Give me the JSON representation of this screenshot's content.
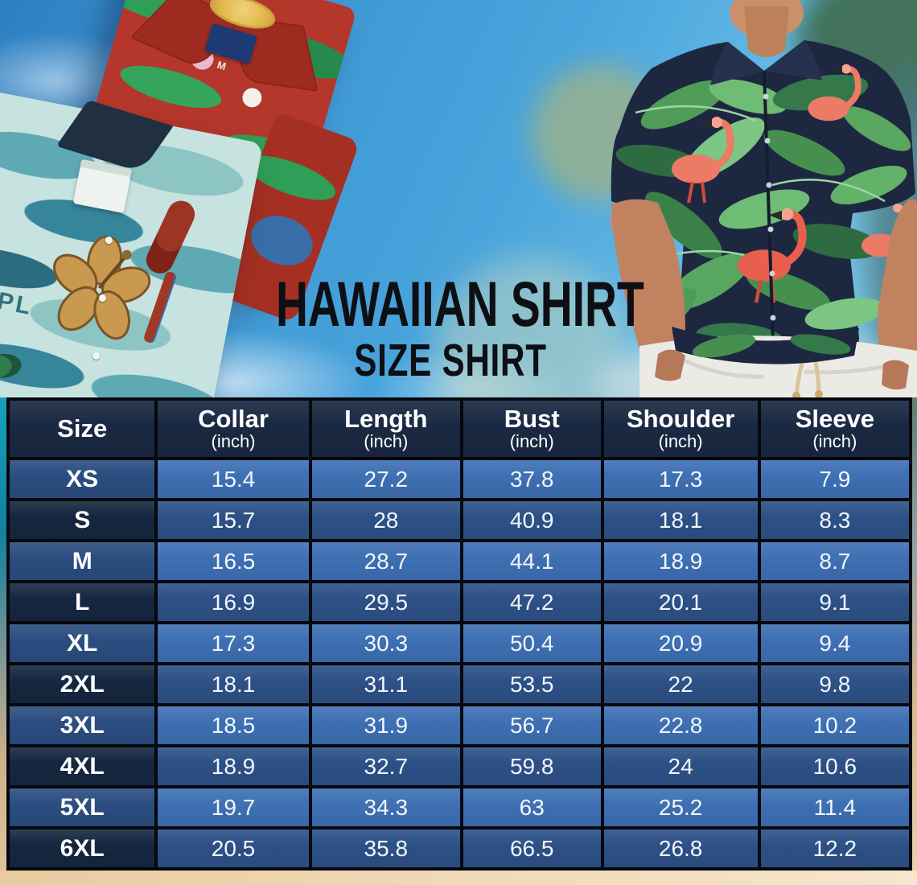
{
  "meta": {
    "title_line1": "HAWAIIAN SHIRT",
    "title_line2": "SIZE SHIRT"
  },
  "photos": {
    "left_shirts": {
      "red_shirt_size_tag": "M",
      "teal_shirt_print_text": "EPL"
    }
  },
  "size_chart": {
    "columns": [
      {
        "label": "Size",
        "unit": ""
      },
      {
        "label": "Collar",
        "unit": "(inch)"
      },
      {
        "label": "Length",
        "unit": "(inch)"
      },
      {
        "label": "Bust",
        "unit": "(inch)"
      },
      {
        "label": "Shoulder",
        "unit": "(inch)"
      },
      {
        "label": "Sleeve",
        "unit": "(inch)"
      }
    ],
    "rows": [
      {
        "size": "XS",
        "values": [
          "15.4",
          "27.2",
          "37.8",
          "17.3",
          "7.9"
        ]
      },
      {
        "size": "S",
        "values": [
          "15.7",
          "28",
          "40.9",
          "18.1",
          "8.3"
        ]
      },
      {
        "size": "M",
        "values": [
          "16.5",
          "28.7",
          "44.1",
          "18.9",
          "8.7"
        ]
      },
      {
        "size": "L",
        "values": [
          "16.9",
          "29.5",
          "47.2",
          "20.1",
          "9.1"
        ]
      },
      {
        "size": "XL",
        "values": [
          "17.3",
          "30.3",
          "50.4",
          "20.9",
          "9.4"
        ]
      },
      {
        "size": "2XL",
        "values": [
          "18.1",
          "31.1",
          "53.5",
          "22",
          "9.8"
        ]
      },
      {
        "size": "3XL",
        "values": [
          "18.5",
          "31.9",
          "56.7",
          "22.8",
          "10.2"
        ]
      },
      {
        "size": "4XL",
        "values": [
          "18.9",
          "32.7",
          "59.8",
          "24",
          "10.6"
        ]
      },
      {
        "size": "5XL",
        "values": [
          "19.7",
          "34.3",
          "63",
          "25.2",
          "11.4"
        ]
      },
      {
        "size": "6XL",
        "values": [
          "20.5",
          "35.8",
          "66.5",
          "26.8",
          "12.2"
        ]
      }
    ]
  },
  "chart_data": {
    "type": "table",
    "title": "Hawaiian Shirt Size Shirt",
    "columns": [
      "Size",
      "Collar (inch)",
      "Length (inch)",
      "Bust (inch)",
      "Shoulder (inch)",
      "Sleeve (inch)"
    ],
    "rows": [
      [
        "XS",
        15.4,
        27.2,
        37.8,
        17.3,
        7.9
      ],
      [
        "S",
        15.7,
        28,
        40.9,
        18.1,
        8.3
      ],
      [
        "M",
        16.5,
        28.7,
        44.1,
        18.9,
        8.7
      ],
      [
        "L",
        16.9,
        29.5,
        47.2,
        20.1,
        9.1
      ],
      [
        "XL",
        17.3,
        30.3,
        50.4,
        20.9,
        9.4
      ],
      [
        "2XL",
        18.1,
        31.1,
        53.5,
        22,
        9.8
      ],
      [
        "3XL",
        18.5,
        31.9,
        56.7,
        22.8,
        10.2
      ],
      [
        "4XL",
        18.9,
        32.7,
        59.8,
        24,
        10.6
      ],
      [
        "5XL",
        19.7,
        34.3,
        63,
        25.2,
        11.4
      ],
      [
        "6XL",
        20.5,
        35.8,
        66.5,
        26.8,
        12.2
      ]
    ]
  },
  "colors": {
    "header_bg": "#1a2942",
    "row_light_label": "#2b4d80",
    "row_light_value": "#3e70b4",
    "row_dark_label": "#152740",
    "row_dark_value": "#2d5187",
    "table_border": "#05080f",
    "title_text": "#0e0f14",
    "sky_blue": "#49a5dc",
    "sand": "#ecd0a8"
  }
}
